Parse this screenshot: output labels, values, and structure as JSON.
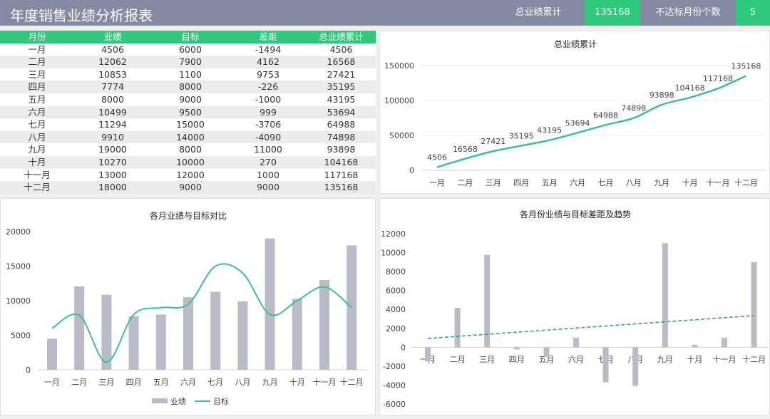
{
  "header": {
    "title": "年度销售业绩分析报表",
    "total_label": "总业绩累计",
    "total_value": "135168",
    "miss_label": "不达标月份个数",
    "miss_value": "5"
  },
  "table": {
    "columns": [
      "月份",
      "业绩",
      "目标",
      "差距",
      "总业绩累计"
    ],
    "rows": [
      [
        "一月",
        "4506",
        "6000",
        "-1494",
        "4506"
      ],
      [
        "二月",
        "12062",
        "7900",
        "4162",
        "16568"
      ],
      [
        "三月",
        "10853",
        "1100",
        "9753",
        "27421"
      ],
      [
        "四月",
        "7774",
        "8000",
        "-226",
        "35195"
      ],
      [
        "五月",
        "8000",
        "9000",
        "-1000",
        "43195"
      ],
      [
        "六月",
        "10499",
        "9500",
        "999",
        "53694"
      ],
      [
        "七月",
        "11294",
        "15000",
        "-3706",
        "64988"
      ],
      [
        "八月",
        "9910",
        "14000",
        "-4090",
        "74898"
      ],
      [
        "九月",
        "19000",
        "8000",
        "11000",
        "93898"
      ],
      [
        "十月",
        "10270",
        "10000",
        "270",
        "104168"
      ],
      [
        "十一月",
        "13000",
        "12000",
        "1000",
        "117168"
      ],
      [
        "十二月",
        "18000",
        "9000",
        "9000",
        "135168"
      ]
    ]
  },
  "colors": {
    "accent": "#2ec97a",
    "header_bg": "#858aa3",
    "bar": "#babbc8",
    "line": "#3cc08e"
  },
  "chart_data": [
    {
      "type": "line",
      "title": "总业绩累计",
      "categories": [
        "一月",
        "二月",
        "三月",
        "四月",
        "五月",
        "六月",
        "七月",
        "八月",
        "九月",
        "十月",
        "十一月",
        "十二月"
      ],
      "values": [
        4506,
        16568,
        27421,
        35195,
        43195,
        53694,
        64988,
        74898,
        93898,
        104168,
        117168,
        135168
      ],
      "yticks": [
        0,
        50000,
        100000,
        150000
      ],
      "ylim": [
        0,
        150000
      ],
      "data_labels": true
    },
    {
      "type": "bar+line",
      "title": "各月业绩与目标对比",
      "categories": [
        "一月",
        "二月",
        "三月",
        "四月",
        "五月",
        "六月",
        "七月",
        "八月",
        "九月",
        "十月",
        "十一月",
        "十二月"
      ],
      "series": [
        {
          "name": "业绩",
          "type": "bar",
          "values": [
            4506,
            12062,
            10853,
            7774,
            8000,
            10499,
            11294,
            9910,
            19000,
            10270,
            13000,
            18000
          ]
        },
        {
          "name": "目标",
          "type": "smooth-line",
          "values": [
            6000,
            7900,
            1100,
            8000,
            9000,
            9500,
            15000,
            14000,
            8000,
            10000,
            12000,
            9000
          ]
        }
      ],
      "yticks": [
        0,
        5000,
        10000,
        15000,
        20000
      ],
      "ylim": [
        0,
        20000
      ],
      "legend": "bottom"
    },
    {
      "type": "bar",
      "title": "各月份业绩与目标差距及趋势",
      "categories": [
        "一月",
        "二月",
        "三月",
        "四月",
        "五月",
        "六月",
        "七月",
        "八月",
        "九月",
        "十月",
        "十一月",
        "十二月"
      ],
      "values": [
        -1494,
        4162,
        9753,
        -226,
        -1000,
        999,
        -3706,
        -4090,
        11000,
        270,
        1000,
        9000
      ],
      "trendline": "linear",
      "yticks": [
        -6000,
        -4000,
        -2000,
        0,
        2000,
        4000,
        6000,
        8000,
        10000,
        12000
      ],
      "ylim": [
        -6000,
        12000
      ]
    }
  ]
}
